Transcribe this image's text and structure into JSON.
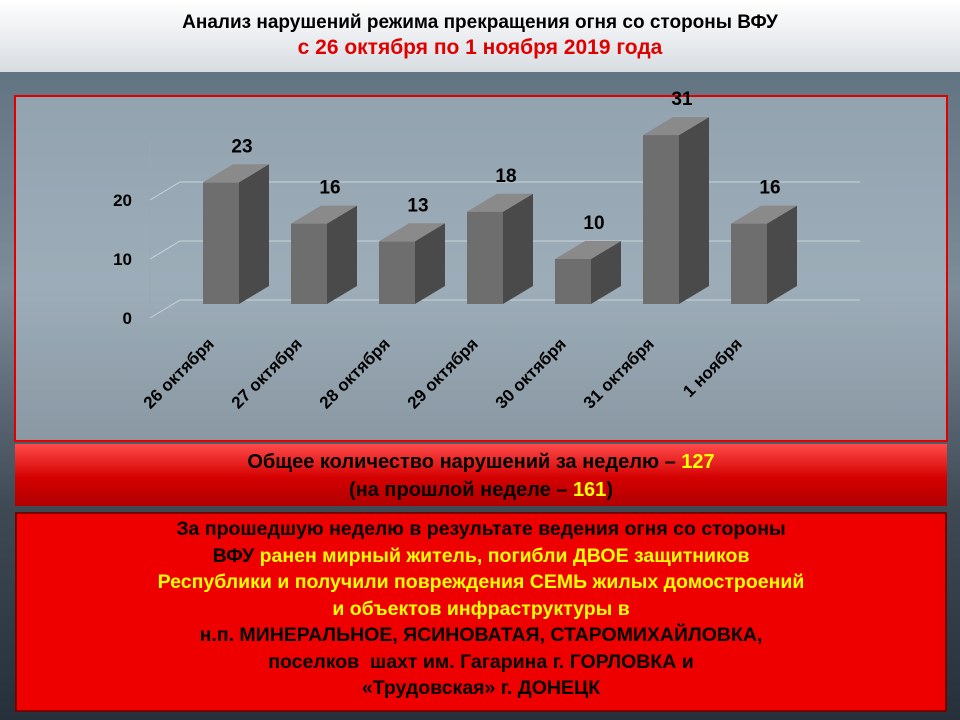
{
  "header": {
    "title": "Анализ нарушений режима прекращения огня со стороны ВФУ",
    "subtitle": "с 26 октября по 1 ноября 2019 года"
  },
  "chart_data": {
    "type": "bar",
    "categories": [
      "26 октября",
      "27 октября",
      "28 октября",
      "29 октября",
      "30 октября",
      "31 октября",
      "1 ноября"
    ],
    "values": [
      23,
      16,
      13,
      18,
      10,
      31,
      16
    ],
    "color": "#6e6e6e",
    "ylim": [
      0,
      30
    ],
    "yticks": [
      0,
      10,
      20
    ],
    "grid": true
  },
  "summary": {
    "line1": "Общее количество нарушений за неделю – ",
    "total": 127,
    "line2_start": "(на прошлой неделе – ",
    "previous": 161,
    "line2_end": ")"
  },
  "report": {
    "lines": [
      [
        {
          "text": "За прошедшую неделю в результате ведения огня со стороны",
          "color": "#000000"
        }
      ],
      [
        {
          "text": "ВФУ ",
          "color": "#000000"
        },
        {
          "text": "ранен мирный житель, погибли ДВОЕ защитников",
          "color": "#ffff00"
        }
      ],
      [
        {
          "text": "Республики и получили повреждения СЕМЬ жилых домостроений",
          "color": "#ffff00"
        }
      ],
      [
        {
          "text": "и объектов инфраструктуры в",
          "color": "#ffff00"
        }
      ],
      [
        {
          "text": "н.п. МИНЕРАЛЬНОЕ, ЯСИНОВАТАЯ, СТАРОМИХАЙЛОВКА,",
          "color": "#000000"
        }
      ],
      [
        {
          "text": "поселков  шахт им. Гагарина г. ГОРЛОВКА и",
          "color": "#000000"
        }
      ],
      [
        {
          "text": "«Трудовская» г. ДОНЕЦК",
          "color": "#000000"
        }
      ]
    ]
  }
}
